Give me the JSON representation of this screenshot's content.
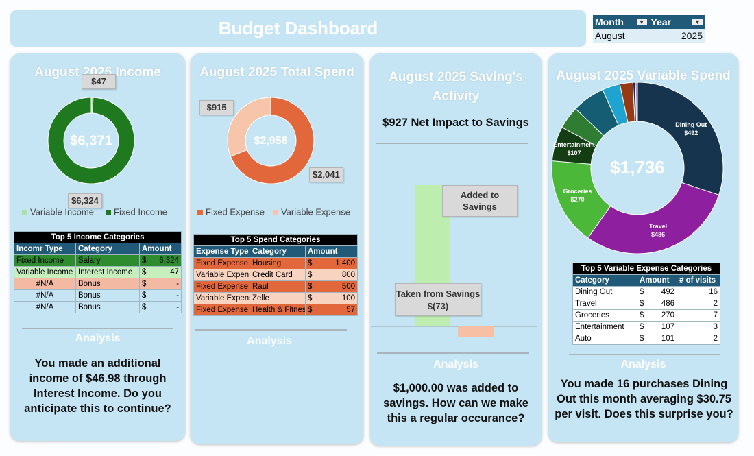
{
  "header": {
    "title": "Budget Dashboard"
  },
  "filter": {
    "columns": [
      "Month",
      "Year"
    ],
    "values": [
      "August",
      "2025"
    ]
  },
  "chart_data": [
    {
      "type": "pie",
      "title": "August 2025 Income",
      "center_label": "$6,371",
      "categories": [
        "Variable Income",
        "Fixed Income"
      ],
      "values": [
        47,
        6324
      ],
      "value_labels": [
        "$47",
        "$6,324"
      ],
      "colors": [
        "#a9e3a0",
        "#1f7a1f"
      ],
      "legend": true,
      "label_position": "outside"
    },
    {
      "type": "pie",
      "title": "August 2025 Total Spend",
      "center_label": "$2,956",
      "categories": [
        "Fixed Expense",
        "Variable Expense"
      ],
      "values": [
        2041,
        915
      ],
      "value_labels": [
        "$2,041",
        "$915"
      ],
      "colors": [
        "#e2673a",
        "#f7c5aa"
      ],
      "legend": true,
      "label_position": "outside"
    },
    {
      "type": "bar",
      "title": "August 2025 Saving's Activity",
      "subtitle": "$927 Net Impact to Savings",
      "categories": [
        "Added to Savings",
        "Taken from Savings"
      ],
      "values": [
        1000,
        -73
      ],
      "value_labels": [
        null,
        "$(73)"
      ],
      "colors": [
        "#bdeeb0",
        "#f7c0a5"
      ]
    },
    {
      "type": "pie",
      "title": "August 2025 Variable Spend",
      "center_label": "$1,736",
      "categories": [
        "Dining Out",
        "Travel",
        "Groceries",
        "Entertainment",
        null,
        null,
        null,
        null,
        null,
        null,
        null
      ],
      "values": [
        492,
        486,
        270,
        107,
        70,
        101,
        55,
        40,
        8,
        4,
        2
      ],
      "value_labels": [
        "$492",
        "$486",
        "$270",
        "$107",
        null,
        null,
        null,
        null,
        null,
        null,
        null
      ],
      "colors": [
        "#17344f",
        "#8e1f9e",
        "#4cb83a",
        "#143d14",
        "#2e7d32",
        "#145d73",
        "#1fa3d1",
        "#973a13",
        "#1b2a5e",
        "#7a2a8a",
        "#e8a0b0"
      ],
      "legend": false,
      "label_position": "inside"
    }
  ],
  "tables": [
    {
      "title": "Top 5 Income Categories",
      "columns": [
        "Incomr Type",
        "Category",
        "Amount"
      ],
      "rows": [
        [
          "Fixed Income",
          "Salary",
          "$",
          "6,324"
        ],
        [
          "Variable Income",
          "Interest Income",
          "$",
          "47"
        ],
        [
          "#N/A",
          "Bonus",
          "$",
          "-"
        ],
        [
          "#N/A",
          "Bonus",
          "$",
          "-"
        ],
        [
          "#N/A",
          "Bonus",
          "$",
          "-"
        ]
      ],
      "row_colors": [
        "#2e8b2e",
        "#c6efbd",
        "#f4b9a3",
        "#c5e5f5",
        "#c5e5f5"
      ]
    },
    {
      "title": "Top 5 Spend Categories",
      "columns": [
        "Expense Type",
        "Category",
        "Amount"
      ],
      "rows": [
        [
          "Fixed Expense",
          "Housing",
          "$",
          "1,400"
        ],
        [
          "Variable Expense",
          "Credit Card",
          "$",
          "800"
        ],
        [
          "Fixed Expense",
          "Raul",
          "$",
          "500"
        ],
        [
          "Variable Expense",
          "Zelle",
          "$",
          "100"
        ],
        [
          "Fixed Expense",
          "Health & Fitness",
          "$",
          "57"
        ]
      ],
      "row_colors": [
        "#e2673a",
        "#f8d3c0",
        "#e2673a",
        "#f8d3c0",
        "#e2673a"
      ]
    },
    {
      "title": "Top 5 Variable Expense Categories",
      "columns": [
        "Category",
        "Amount",
        "# of visits"
      ],
      "rows": [
        [
          "Dining Out",
          "$",
          "492",
          "16"
        ],
        [
          "Travel",
          "$",
          "486",
          "2"
        ],
        [
          "Groceries",
          "$",
          "270",
          "7"
        ],
        [
          "Entertainment",
          "$",
          "107",
          "3"
        ],
        [
          "Auto",
          "$",
          "101",
          "2"
        ]
      ],
      "row_colors": [
        "#ffffff",
        "#ffffff",
        "#ffffff",
        "#ffffff",
        "#ffffff"
      ]
    }
  ],
  "analysis": [
    {
      "heading": "Analysis",
      "text": "You made an additional income of $46.98 through Interest Income. Do you anticipate this to continue?"
    },
    {
      "heading": "Analysis"
    },
    {
      "heading": "Analysis",
      "text": "$1,000.00 was added to savings. How can we make this a regular occurance?"
    },
    {
      "heading": "Analysis",
      "text": "You made 16 purchases Dining Out this month averaging $30.75 per visit. Does this surprise you?"
    }
  ]
}
